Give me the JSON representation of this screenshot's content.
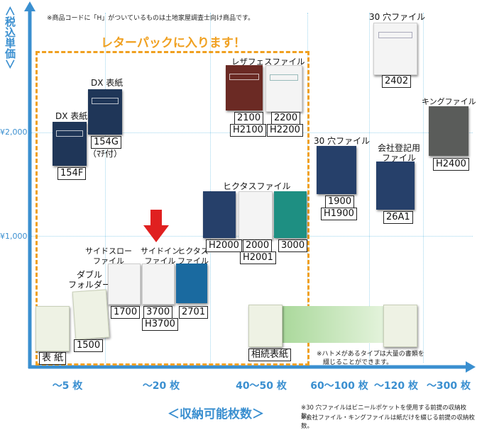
{
  "note_top": "※商品コードに「H」がついているものは土地家屋調査士向け商品です。",
  "y_axis": {
    "label": "＜税込単価＞",
    "ticks": [
      "¥2,000",
      "¥1,000"
    ]
  },
  "x_axis": {
    "label": "＜収納可能枚数＞",
    "ticks": [
      "～5 枚",
      "～20 枚",
      "40～50 枚",
      "60～100 枚",
      "～120 枚",
      "～300 枚"
    ]
  },
  "letterpack": "レターパックに入ります！",
  "groups": {
    "dx_hyoshi": "DX 表紙",
    "dx_hyoshi2": "DX 表紙",
    "daburu": "ダブル\nフォルダー",
    "side_slow": "サイドスロー\nファイル",
    "side_in": "サイドイン\nファイル",
    "hiktas_small": "ヒクタス\nファイル",
    "hiktas": "ヒクタスファイル",
    "leather": "レザフェスファイル",
    "30ana_top": "30 穴ファイル",
    "30ana": "30 穴ファイル",
    "kaisha": "会社登記用\nファイル",
    "king": "キングファイル G"
  },
  "codes": {
    "c154F": "154F",
    "c154G": "154G",
    "c154G_sub": "（ﾏﾁ付）",
    "hyoshi": "表 紙",
    "c1500": "1500",
    "c1700": "1700",
    "c3700": "3700",
    "cH3700": "H3700",
    "c2701": "2701",
    "cH2000": "H2000",
    "c2000": "2000",
    "cH2001": "H2001",
    "c3000": "3000",
    "c2100": "2100",
    "cH2100": "H2100",
    "c2200": "2200",
    "cH2200": "H2200",
    "c1900": "1900",
    "cH1900": "H1900",
    "c26A1": "26A1",
    "c2402": "2402",
    "cH2400": "H2400",
    "sozoku": "相続表紙"
  },
  "hatome_note": "※ハトメがあるタイプは大量の書類を\n　綴じることができます。",
  "footnotes": [
    "※30 穴ファイルはビニールポケットを使用する前提の収納枚数。",
    "※会社ファイル・キングファイルは紙だけを綴じる前提の収納枚数。"
  ],
  "colors": {
    "axis": "#3a8fd0",
    "letterpack_border": "#f0a020",
    "arrow": "#e02020",
    "grid": "#9fd6ee"
  }
}
